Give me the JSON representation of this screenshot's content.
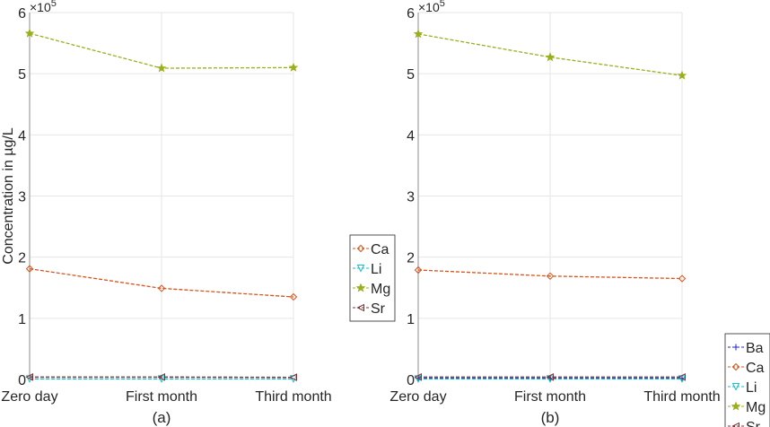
{
  "chart_data": [
    {
      "type": "line",
      "caption": "(a)",
      "ylabel": "Concentration in µg/L",
      "exponent_label": "×10",
      "exponent": "5",
      "categories": [
        "Zero day",
        "First month",
        "Third month"
      ],
      "ylim": [
        0,
        6
      ],
      "yticks": [
        "0",
        "1",
        "2",
        "3",
        "4",
        "5",
        "6"
      ],
      "grid": true,
      "legend_placement": "right",
      "series": [
        {
          "name": "Ca",
          "color": "#D95319",
          "marker": "diamond",
          "values": [
            1.81,
            1.49,
            1.35
          ]
        },
        {
          "name": "Li",
          "color": "#17BECF",
          "marker": "triangle-down",
          "values": [
            0.01,
            0.01,
            0.01
          ]
        },
        {
          "name": "Mg",
          "color": "#9AAF1A",
          "marker": "star",
          "values": [
            5.66,
            5.09,
            5.1
          ]
        },
        {
          "name": "Sr",
          "color": "#7E2F2F",
          "marker": "triangle-left",
          "values": [
            0.04,
            0.04,
            0.035
          ]
        }
      ]
    },
    {
      "type": "line",
      "caption": "(b)",
      "ylabel": "",
      "exponent_label": "×10",
      "exponent": "5",
      "categories": [
        "Zero day",
        "First month",
        "Third month"
      ],
      "ylim": [
        0,
        6
      ],
      "yticks": [
        "0",
        "1",
        "2",
        "3",
        "4",
        "5",
        "6"
      ],
      "grid": true,
      "legend_placement": "right",
      "series": [
        {
          "name": "Ba",
          "color": "#1F1FE0",
          "marker": "plus",
          "values": [
            0.02,
            0.02,
            0.02
          ]
        },
        {
          "name": "Ca",
          "color": "#D95319",
          "marker": "diamond",
          "values": [
            1.79,
            1.69,
            1.65
          ]
        },
        {
          "name": "Li",
          "color": "#17BECF",
          "marker": "triangle-down",
          "values": [
            0.01,
            0.01,
            0.01
          ]
        },
        {
          "name": "Mg",
          "color": "#9AAF1A",
          "marker": "star",
          "values": [
            5.65,
            5.27,
            4.97
          ]
        },
        {
          "name": "Sr",
          "color": "#7E2F2F",
          "marker": "triangle-left",
          "values": [
            0.04,
            0.04,
            0.04
          ]
        }
      ]
    }
  ]
}
